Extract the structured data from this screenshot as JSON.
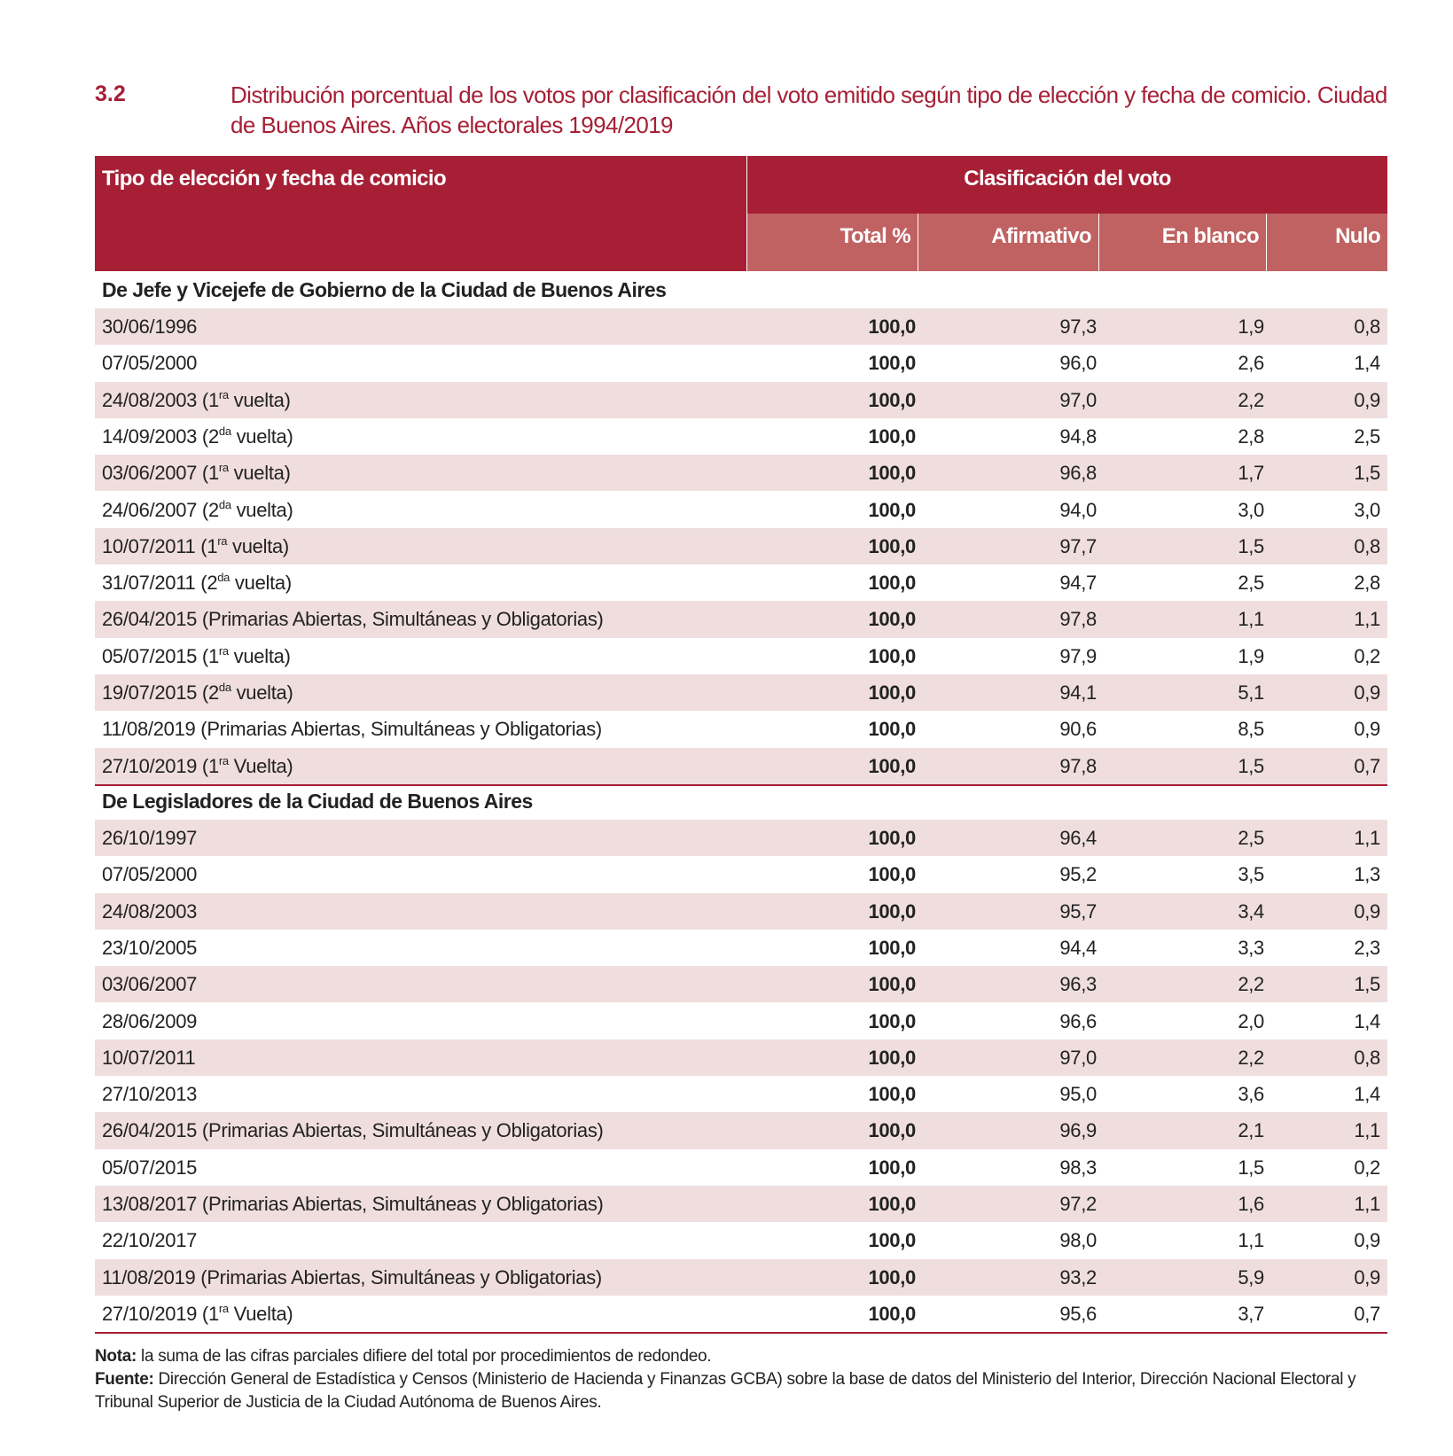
{
  "table_number": "3.2",
  "title": "Distribución porcentual de los votos por clasificación del voto emitido según tipo de elección y fecha de comicio. Ciudad de Buenos Aires. Años electorales 1994/2019",
  "header": {
    "col1": "Tipo de elección y fecha de comicio",
    "group": "Clasificación del voto",
    "total": "Total %",
    "afirmativo": "Afirmativo",
    "blanco": "En blanco",
    "nulo": "Nulo"
  },
  "sections": [
    {
      "title": "De Jefe y Vicejefe de Gobierno de la Ciudad de Buenos Aires",
      "rows": [
        {
          "date": "30/06/1996",
          "sup": "",
          "note": "",
          "total": "100,0",
          "afirmativo": "97,3",
          "blanco": "1,9",
          "nulo": "0,8"
        },
        {
          "date": "07/05/2000",
          "sup": "",
          "note": "",
          "total": "100,0",
          "afirmativo": "96,0",
          "blanco": "2,6",
          "nulo": "1,4"
        },
        {
          "date": "24/08/2003 (1",
          "sup": "ra",
          "note": " vuelta)",
          "total": "100,0",
          "afirmativo": "97,0",
          "blanco": "2,2",
          "nulo": "0,9"
        },
        {
          "date": "14/09/2003 (2",
          "sup": "da",
          "note": " vuelta)",
          "total": "100,0",
          "afirmativo": "94,8",
          "blanco": "2,8",
          "nulo": "2,5"
        },
        {
          "date": "03/06/2007 (1",
          "sup": "ra",
          "note": " vuelta)",
          "total": "100,0",
          "afirmativo": "96,8",
          "blanco": "1,7",
          "nulo": "1,5"
        },
        {
          "date": "24/06/2007 (2",
          "sup": "da",
          "note": " vuelta)",
          "total": "100,0",
          "afirmativo": "94,0",
          "blanco": "3,0",
          "nulo": "3,0"
        },
        {
          "date": "10/07/2011 (1",
          "sup": "ra",
          "note": " vuelta)",
          "total": "100,0",
          "afirmativo": "97,7",
          "blanco": "1,5",
          "nulo": "0,8"
        },
        {
          "date": "31/07/2011 (2",
          "sup": "da",
          "note": " vuelta)",
          "total": "100,0",
          "afirmativo": "94,7",
          "blanco": "2,5",
          "nulo": "2,8"
        },
        {
          "date": "26/04/2015 (Primarias Abiertas, Simultáneas y Obligatorias)",
          "sup": "",
          "note": "",
          "total": "100,0",
          "afirmativo": "97,8",
          "blanco": "1,1",
          "nulo": "1,1"
        },
        {
          "date": "05/07/2015 (1",
          "sup": "ra",
          "note": " vuelta)",
          "total": "100,0",
          "afirmativo": "97,9",
          "blanco": "1,9",
          "nulo": "0,2"
        },
        {
          "date": "19/07/2015 (2",
          "sup": "da",
          "note": " vuelta)",
          "total": "100,0",
          "afirmativo": "94,1",
          "blanco": "5,1",
          "nulo": "0,9"
        },
        {
          "date": "11/08/2019 (Primarias Abiertas, Simultáneas y Obligatorias)",
          "sup": "",
          "note": "",
          "total": "100,0",
          "afirmativo": "90,6",
          "blanco": "8,5",
          "nulo": "0,9"
        },
        {
          "date": "27/10/2019 (1",
          "sup": "ra",
          "note": " Vuelta)",
          "total": "100,0",
          "afirmativo": "97,8",
          "blanco": "1,5",
          "nulo": "0,7"
        }
      ]
    },
    {
      "title": "De Legisladores de la Ciudad de Buenos Aires",
      "rows": [
        {
          "date": "26/10/1997",
          "sup": "",
          "note": "",
          "total": "100,0",
          "afirmativo": "96,4",
          "blanco": "2,5",
          "nulo": "1,1"
        },
        {
          "date": "07/05/2000",
          "sup": "",
          "note": "",
          "total": "100,0",
          "afirmativo": "95,2",
          "blanco": "3,5",
          "nulo": "1,3"
        },
        {
          "date": "24/08/2003",
          "sup": "",
          "note": "",
          "total": "100,0",
          "afirmativo": "95,7",
          "blanco": "3,4",
          "nulo": "0,9"
        },
        {
          "date": "23/10/2005",
          "sup": "",
          "note": "",
          "total": "100,0",
          "afirmativo": "94,4",
          "blanco": "3,3",
          "nulo": "2,3"
        },
        {
          "date": "03/06/2007",
          "sup": "",
          "note": "",
          "total": "100,0",
          "afirmativo": "96,3",
          "blanco": "2,2",
          "nulo": "1,5"
        },
        {
          "date": "28/06/2009",
          "sup": "",
          "note": "",
          "total": "100,0",
          "afirmativo": "96,6",
          "blanco": "2,0",
          "nulo": "1,4"
        },
        {
          "date": "10/07/2011",
          "sup": "",
          "note": "",
          "total": "100,0",
          "afirmativo": "97,0",
          "blanco": "2,2",
          "nulo": "0,8"
        },
        {
          "date": "27/10/2013",
          "sup": "",
          "note": "",
          "total": "100,0",
          "afirmativo": "95,0",
          "blanco": "3,6",
          "nulo": "1,4"
        },
        {
          "date": "26/04/2015 (Primarias Abiertas, Simultáneas y Obligatorias)",
          "sup": "",
          "note": "",
          "total": "100,0",
          "afirmativo": "96,9",
          "blanco": "2,1",
          "nulo": "1,1"
        },
        {
          "date": "05/07/2015",
          "sup": "",
          "note": "",
          "total": "100,0",
          "afirmativo": "98,3",
          "blanco": "1,5",
          "nulo": "0,2"
        },
        {
          "date": "13/08/2017 (Primarias Abiertas, Simultáneas y Obligatorias)",
          "sup": "",
          "note": "",
          "total": "100,0",
          "afirmativo": "97,2",
          "blanco": "1,6",
          "nulo": "1,1"
        },
        {
          "date": "22/10/2017",
          "sup": "",
          "note": "",
          "total": "100,0",
          "afirmativo": "98,0",
          "blanco": "1,1",
          "nulo": "0,9"
        },
        {
          "date": "11/08/2019 (Primarias Abiertas, Simultáneas y Obligatorias)",
          "sup": "",
          "note": "",
          "total": "100,0",
          "afirmativo": "93,2",
          "blanco": "5,9",
          "nulo": "0,9"
        },
        {
          "date": "27/10/2019 (1",
          "sup": "ra",
          "note": " Vuelta)",
          "total": "100,0",
          "afirmativo": "95,6",
          "blanco": "3,7",
          "nulo": "0,7"
        }
      ]
    }
  ],
  "notes": {
    "nota_label": "Nota:",
    "nota": " la suma de las cifras parciales difiere del total por procedimientos de redondeo.",
    "fuente_label": "Fuente:",
    "fuente": "  Dirección General de Estadística y Censos (Ministerio de Hacienda y Finanzas GCBA) sobre la base de datos del Ministerio del Interior, Dirección Nacional Electoral y Tribunal Superior de Justicia de la Ciudad Autónoma de Buenos Aires."
  },
  "colors": {
    "accent": "#a61f35",
    "subheader": "#c06262",
    "row_alt": "#f0dede"
  }
}
